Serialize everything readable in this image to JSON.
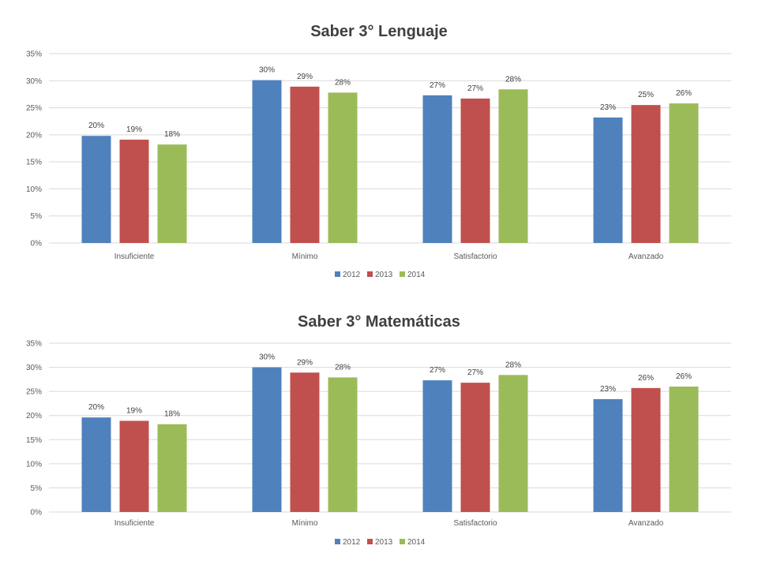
{
  "chart_data": [
    {
      "type": "bar",
      "title": "Saber 3° Lenguaje",
      "categories": [
        "Insuficiente",
        "Mínimo",
        "Satisfactorio",
        "Avanzado"
      ],
      "series": [
        {
          "name": "2012",
          "color": "#4f81bd",
          "values": [
            19.8,
            30.1,
            27.3,
            23.2
          ],
          "labels": [
            "20%",
            "30%",
            "27%",
            "23%"
          ]
        },
        {
          "name": "2013",
          "color": "#c0504d",
          "values": [
            19.1,
            28.9,
            26.7,
            25.5
          ],
          "labels": [
            "19%",
            "29%",
            "27%",
            "25%"
          ]
        },
        {
          "name": "2014",
          "color": "#9bbb59",
          "values": [
            18.2,
            27.8,
            28.4,
            25.8
          ],
          "labels": [
            "18%",
            "28%",
            "28%",
            "26%"
          ]
        }
      ],
      "ylim": [
        0,
        35
      ],
      "yticks": [
        "0%",
        "5%",
        "10%",
        "15%",
        "20%",
        "25%",
        "30%",
        "35%"
      ],
      "grid": true,
      "legend": "bottom"
    },
    {
      "type": "bar",
      "title": "Saber 3° Matemáticas",
      "categories": [
        "Insuficiente",
        "Mínimo",
        "Satisfactorio",
        "Avanzado"
      ],
      "series": [
        {
          "name": "2012",
          "color": "#4f81bd",
          "values": [
            19.6,
            30.0,
            27.3,
            23.4
          ],
          "labels": [
            "20%",
            "30%",
            "27%",
            "23%"
          ]
        },
        {
          "name": "2013",
          "color": "#c0504d",
          "values": [
            18.9,
            28.9,
            26.8,
            25.7
          ],
          "labels": [
            "19%",
            "29%",
            "27%",
            "26%"
          ]
        },
        {
          "name": "2014",
          "color": "#9bbb59",
          "values": [
            18.2,
            27.9,
            28.4,
            26.0
          ],
          "labels": [
            "18%",
            "28%",
            "28%",
            "26%"
          ]
        }
      ],
      "ylim": [
        0,
        35
      ],
      "yticks": [
        "0%",
        "5%",
        "10%",
        "15%",
        "20%",
        "25%",
        "30%",
        "35%"
      ],
      "grid": true,
      "legend": "bottom"
    }
  ]
}
